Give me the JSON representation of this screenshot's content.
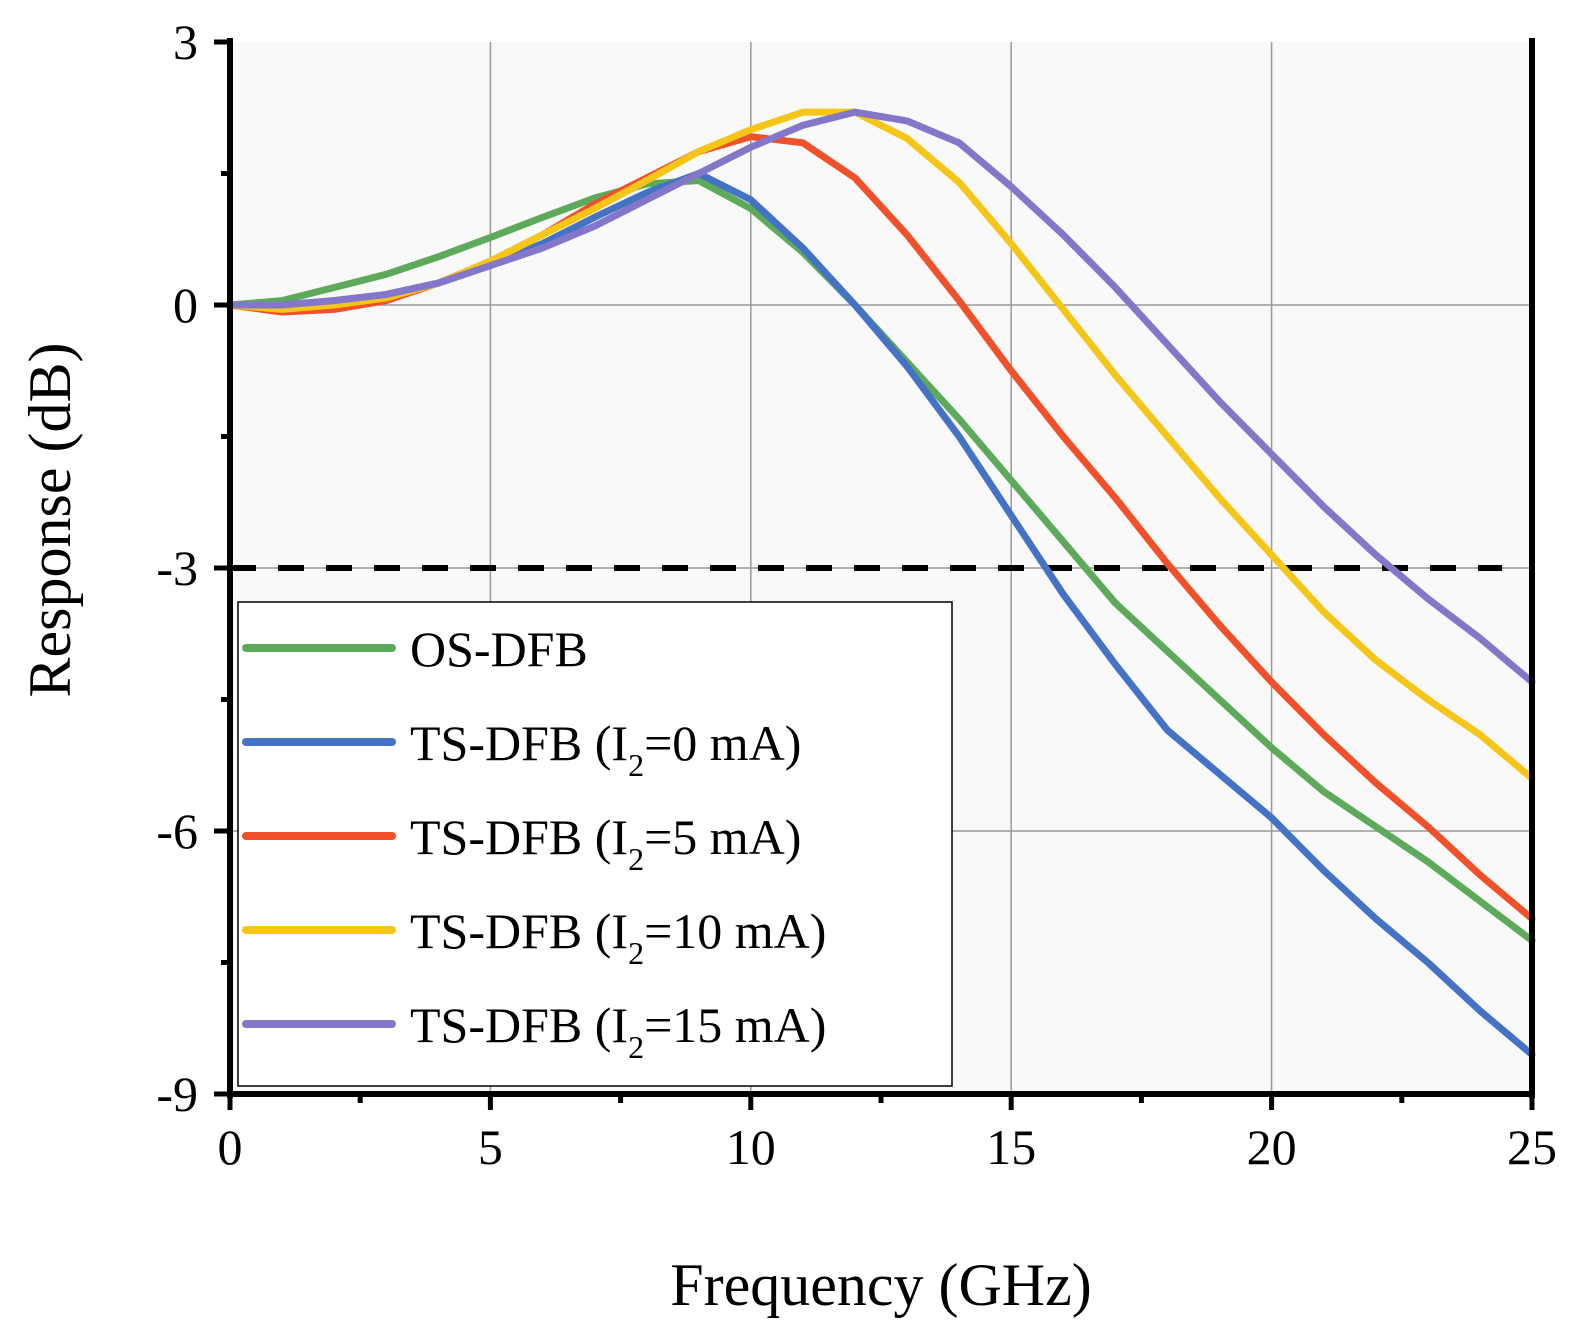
{
  "chart_data": {
    "type": "line",
    "xlabel": "Frequency (GHz)",
    "ylabel": "Response (dB)",
    "xlim": [
      0,
      25
    ],
    "ylim": [
      -9,
      3
    ],
    "xticks": [
      "0",
      "5",
      "10",
      "15",
      "20",
      "25"
    ],
    "yticks": [
      "3",
      "0",
      "-3",
      "-6",
      "-9"
    ],
    "grid": true,
    "legend_position": "bottom-left",
    "reference_line": {
      "y": -3,
      "style": "dashed",
      "color": "#000000"
    },
    "x": [
      0,
      1,
      2,
      3,
      4,
      5,
      6,
      7,
      8,
      9,
      10,
      11,
      12,
      13,
      14,
      15,
      16,
      17,
      18,
      19,
      20,
      21,
      22,
      23,
      24,
      25
    ],
    "series": [
      {
        "name": "OS-DFB",
        "label_main": "OS-DFB",
        "label_sub": "",
        "label_end": "",
        "color": "#5daa5a",
        "values": [
          0,
          0.05,
          0.2,
          0.35,
          0.55,
          0.77,
          1.0,
          1.22,
          1.38,
          1.42,
          1.1,
          0.6,
          0.0,
          -0.65,
          -1.3,
          -2.0,
          -2.7,
          -3.4,
          -3.95,
          -4.5,
          -5.05,
          -5.55,
          -5.95,
          -6.35,
          -6.8,
          -7.25
        ]
      },
      {
        "name": "TS-DFB (I2=0 mA)",
        "label_main": "TS-DFB (I",
        "label_sub": "2",
        "label_end": "=0 mA)",
        "color": "#4472c4",
        "values": [
          0,
          0.0,
          0.05,
          0.12,
          0.25,
          0.45,
          0.7,
          1.0,
          1.28,
          1.5,
          1.2,
          0.65,
          0.0,
          -0.7,
          -1.5,
          -2.4,
          -3.3,
          -4.1,
          -4.85,
          -5.35,
          -5.85,
          -6.45,
          -7.0,
          -7.5,
          -8.05,
          -8.55
        ]
      },
      {
        "name": "TS-DFB (I2=5 mA)",
        "label_main": "TS-DFB (I",
        "label_sub": "2",
        "label_end": "=5 mA)",
        "color": "#f0502a",
        "values": [
          0,
          -0.08,
          -0.05,
          0.05,
          0.25,
          0.5,
          0.8,
          1.15,
          1.45,
          1.75,
          1.92,
          1.85,
          1.45,
          0.8,
          0.05,
          -0.75,
          -1.5,
          -2.2,
          -2.95,
          -3.65,
          -4.3,
          -4.9,
          -5.45,
          -5.95,
          -6.5,
          -7.0
        ]
      },
      {
        "name": "TS-DFB (I2=10 mA)",
        "label_main": "TS-DFB (I",
        "label_sub": "2",
        "label_end": "=10 mA)",
        "color": "#f5c518",
        "values": [
          0,
          -0.05,
          0.0,
          0.08,
          0.25,
          0.5,
          0.8,
          1.1,
          1.42,
          1.75,
          2.0,
          2.2,
          2.2,
          1.9,
          1.4,
          0.7,
          -0.05,
          -0.8,
          -1.5,
          -2.2,
          -2.85,
          -3.5,
          -4.05,
          -4.5,
          -4.9,
          -5.4
        ]
      },
      {
        "name": "TS-DFB (I2=15 mA)",
        "label_main": "TS-DFB (I",
        "label_sub": "2",
        "label_end": "=15 mA)",
        "color": "#8477c9",
        "values": [
          0,
          0.0,
          0.05,
          0.12,
          0.25,
          0.45,
          0.65,
          0.9,
          1.2,
          1.5,
          1.8,
          2.05,
          2.2,
          2.1,
          1.85,
          1.35,
          0.8,
          0.2,
          -0.45,
          -1.1,
          -1.7,
          -2.3,
          -2.85,
          -3.35,
          -3.8,
          -4.3
        ]
      }
    ]
  }
}
